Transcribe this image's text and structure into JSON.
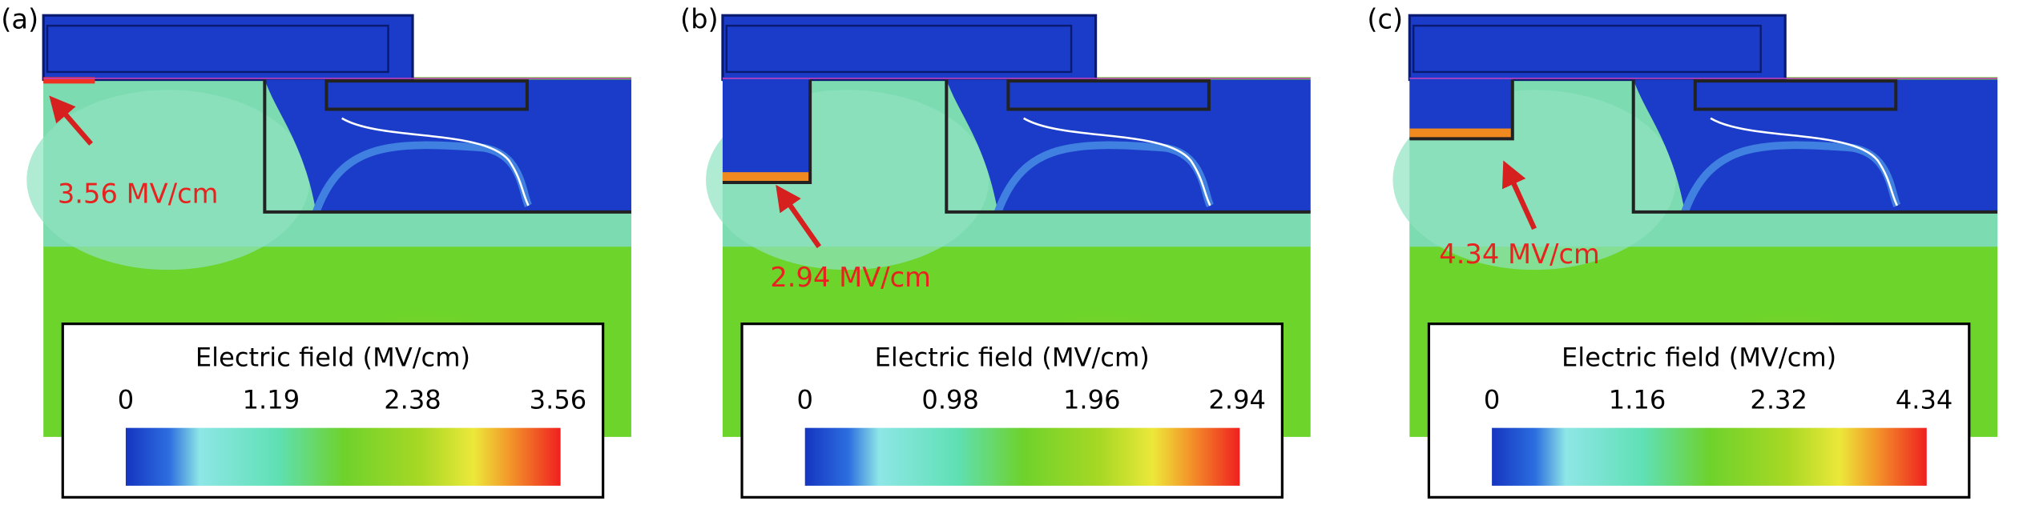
{
  "panels": [
    {
      "label": "(a)",
      "annotation": "3.56 MV/cm",
      "colorbar": {
        "title": "Electric field (MV/cm)",
        "ticks": [
          "0",
          "1.19",
          "2.38",
          "3.56"
        ]
      }
    },
    {
      "label": "(b)",
      "annotation": "2.94 MV/cm",
      "colorbar": {
        "title": "Electric field (MV/cm)",
        "ticks": [
          "0",
          "0.98",
          "1.96",
          "2.94"
        ]
      }
    },
    {
      "label": "(c)",
      "annotation": "4.34 MV/cm",
      "colorbar": {
        "title": "Electric field (MV/cm)",
        "ticks": [
          "0",
          "1.16",
          "2.32",
          "4.34"
        ]
      }
    }
  ]
}
